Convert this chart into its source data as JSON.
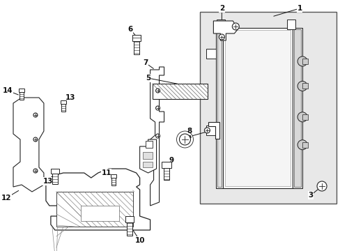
{
  "bg_color": "#ffffff",
  "fig_width": 4.89,
  "fig_height": 3.6,
  "dpi": 100,
  "line_color": "#222222",
  "fill_color": "#f0f0f0",
  "hatch_color": "#aaaaaa"
}
